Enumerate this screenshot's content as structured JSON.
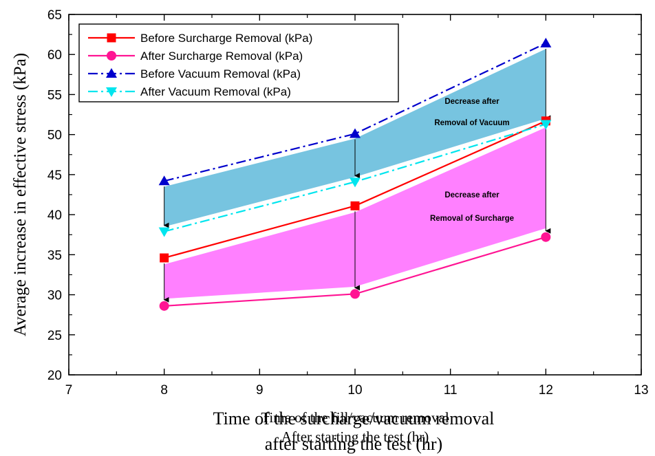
{
  "chart_data": {
    "type": "line",
    "xlabel_lines": [
      "Time of the surcharge/vacuum removal",
      "after starting the test (hr)"
    ],
    "xlabel_overlay_lines": [
      "Time of the fill/vacuum removal",
      "After starting the test (hr)"
    ],
    "ylabel": "Average increase in effective stress (kPa)",
    "xlim": [
      7,
      13
    ],
    "ylim": [
      20,
      65
    ],
    "xticks": [
      7,
      8,
      9,
      10,
      11,
      12,
      13
    ],
    "yticks": [
      20,
      25,
      30,
      35,
      40,
      45,
      50,
      55,
      60,
      65
    ],
    "x": [
      8,
      10,
      12
    ],
    "series": [
      {
        "name": "Before Surcharge Removal (kPa)",
        "values": [
          34.6,
          41.1,
          51.7
        ],
        "color": "#ff0000",
        "dash": "solid",
        "marker": "square"
      },
      {
        "name": "After Surcharge Removal (kPa)",
        "values": [
          28.6,
          30.1,
          37.2
        ],
        "color": "#ff1493",
        "dash": "solid",
        "marker": "circle"
      },
      {
        "name": "Before Vacuum Removal (kPa)",
        "values": [
          44.2,
          50.1,
          61.4
        ],
        "color": "#0000cc",
        "dash": "dashdot",
        "marker": "triangle-up"
      },
      {
        "name": "After Vacuum Removal (kPa)",
        "values": [
          37.9,
          44.1,
          51.3
        ],
        "color": "#00e5ee",
        "dash": "dashdot",
        "marker": "triangle-down"
      }
    ],
    "bands": [
      {
        "label": "Removal of Vacuum",
        "upper": [
          43.5,
          49.5,
          60.7
        ],
        "lower": [
          38.5,
          44.7,
          52.0
        ],
        "color": "#77c4e0"
      },
      {
        "label": "Removal of Surcharge",
        "upper": [
          33.8,
          40.3,
          50.9
        ],
        "lower": [
          29.5,
          31.0,
          38.3
        ],
        "color": "#ff80ff"
      }
    ],
    "annotations": [
      {
        "lines": [
          "Decrease after",
          "Removal of Vacuum"
        ]
      },
      {
        "lines": [
          "Decrease after",
          "Removal of Surcharge"
        ]
      }
    ],
    "legend_position": "top-left",
    "grid": false
  }
}
